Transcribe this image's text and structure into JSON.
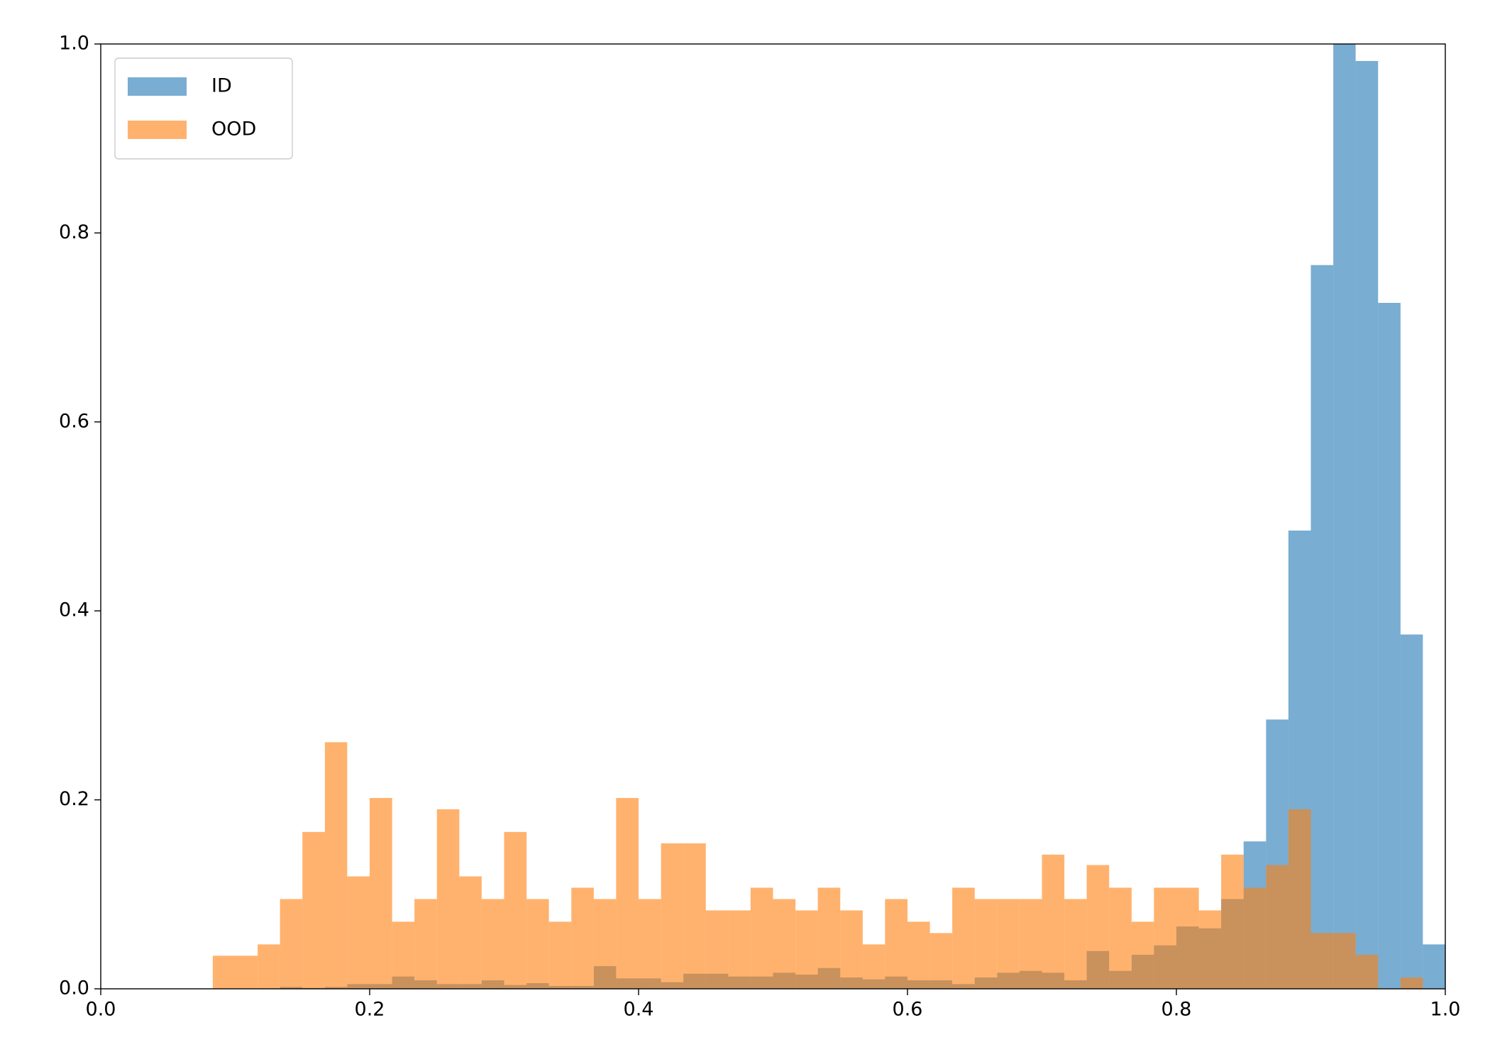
{
  "chart_data": {
    "type": "histogram",
    "bins": [
      0,
      0.0167,
      0.0333,
      0.05,
      0.0667,
      0.0833,
      0.1,
      0.1167,
      0.1333,
      0.15,
      0.1667,
      0.1833,
      0.2,
      0.2167,
      0.2333,
      0.25,
      0.2667,
      0.2833,
      0.3,
      0.3167,
      0.3333,
      0.35,
      0.3667,
      0.3833,
      0.4,
      0.4167,
      0.4333,
      0.45,
      0.4667,
      0.4833,
      0.5,
      0.5167,
      0.5333,
      0.55,
      0.5667,
      0.5833,
      0.6,
      0.6167,
      0.6333,
      0.65,
      0.6667,
      0.6833,
      0.7,
      0.7167,
      0.7333,
      0.75,
      0.7667,
      0.7833,
      0.8,
      0.8167,
      0.8333,
      0.85,
      0.8667,
      0.8833,
      0.9,
      0.9167,
      0.9333,
      0.95,
      0.9667,
      0.9833,
      1
    ],
    "series": [
      {
        "name": "ID",
        "color": "#1f77b4",
        "values": [
          0,
          0,
          0,
          0,
          0,
          0,
          0,
          0,
          0.002,
          0.001,
          0.002,
          0.005,
          0.005,
          0.013,
          0.009,
          0.005,
          0.005,
          0.009,
          0.004,
          0.006,
          0.003,
          0.003,
          0.024,
          0.011,
          0.011,
          0.007,
          0.016,
          0.016,
          0.013,
          0.013,
          0.017,
          0.015,
          0.022,
          0.012,
          0.01,
          0.013,
          0.009,
          0.009,
          0.005,
          0.012,
          0.017,
          0.019,
          0.017,
          0.009,
          0.04,
          0.019,
          0.036,
          0.046,
          0.066,
          0.064,
          0.095,
          0.156,
          0.285,
          0.485,
          0.766,
          1.01,
          0.982,
          0.726,
          0.375,
          0.047
        ]
      },
      {
        "name": "OOD",
        "color": "#ff7f0e",
        "values": [
          0,
          0,
          0,
          0,
          0,
          0.035,
          0.035,
          0.047,
          0.095,
          0.166,
          0.261,
          0.119,
          0.202,
          0.071,
          0.095,
          0.19,
          0.119,
          0.095,
          0.166,
          0.095,
          0.071,
          0.107,
          0.095,
          0.202,
          0.095,
          0.154,
          0.154,
          0.083,
          0.083,
          0.107,
          0.095,
          0.083,
          0.107,
          0.083,
          0.047,
          0.095,
          0.071,
          0.059,
          0.107,
          0.095,
          0.095,
          0.095,
          0.142,
          0.095,
          0.131,
          0.107,
          0.071,
          0.107,
          0.107,
          0.083,
          0.142,
          0.107,
          0.131,
          0.19,
          0.059,
          0.059,
          0.036,
          0,
          0.012,
          0
        ]
      }
    ],
    "alpha": 0.6,
    "xlim": [
      0,
      1
    ],
    "xticks": [
      {
        "value": 0,
        "label": "0.0"
      },
      0.2,
      0.4,
      0.6,
      0.8,
      {
        "value": 1,
        "label": "1.0"
      }
    ],
    "ylim": [
      0,
      1
    ],
    "yticks": [
      {
        "value": 0,
        "label": "0.0"
      },
      0.2,
      0.4,
      0.6,
      0.8,
      {
        "value": 1,
        "label": "1.0"
      }
    ],
    "legend": "upper left"
  }
}
